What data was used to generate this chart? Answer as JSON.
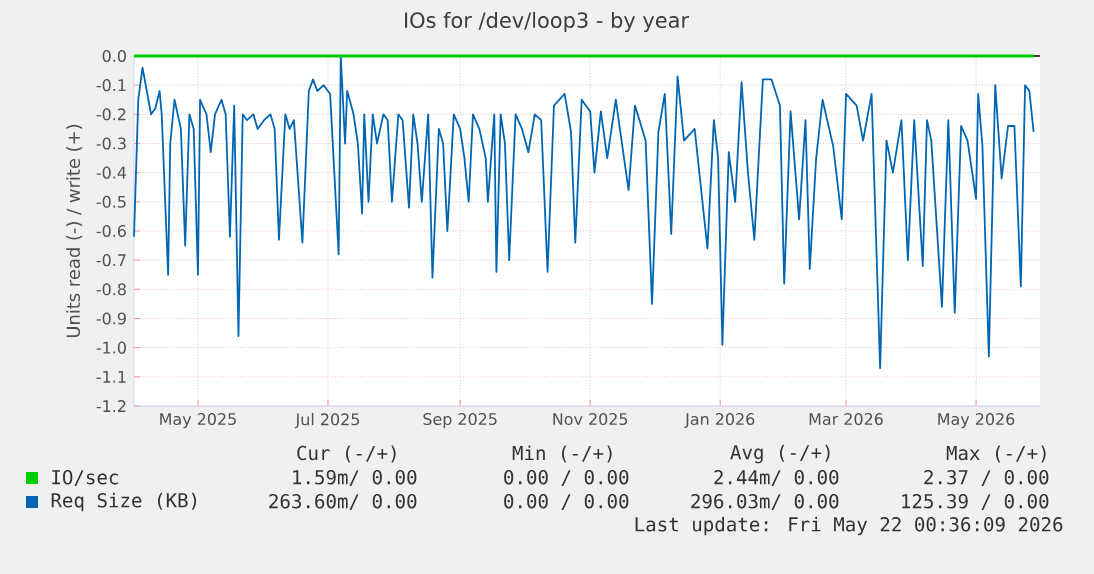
{
  "chart_data": {
    "type": "line",
    "title": "IOs for /dev/loop3 - by year",
    "ylabel": "Units read (-) / write (+)",
    "xlim": [
      "2025-04-01",
      "2026-05-31"
    ],
    "ylim": [
      -1.2,
      0.0
    ],
    "xticks": [
      {
        "value": "2025-05-01",
        "label": "May 2025"
      },
      {
        "value": "2025-07-01",
        "label": "Jul 2025"
      },
      {
        "value": "2025-09-01",
        "label": "Sep 2025"
      },
      {
        "value": "2025-11-01",
        "label": "Nov 2025"
      },
      {
        "value": "2026-01-01",
        "label": "Jan 2026"
      },
      {
        "value": "2026-03-01",
        "label": "Mar 2026"
      },
      {
        "value": "2026-05-01",
        "label": "May 2026"
      }
    ],
    "yticks": [
      {
        "value": 0.0,
        "label": "0.0"
      },
      {
        "value": -0.1,
        "label": "-0.1"
      },
      {
        "value": -0.2,
        "label": "-0.2"
      },
      {
        "value": -0.3,
        "label": "-0.3"
      },
      {
        "value": -0.4,
        "label": "-0.4"
      },
      {
        "value": -0.5,
        "label": "-0.5"
      },
      {
        "value": -0.6,
        "label": "-0.6"
      },
      {
        "value": -0.7,
        "label": "-0.7"
      },
      {
        "value": -0.8,
        "label": "-0.8"
      },
      {
        "value": -0.9,
        "label": "-0.9"
      },
      {
        "value": -1.0,
        "label": "-1.0"
      },
      {
        "value": -1.1,
        "label": "-1.1"
      },
      {
        "value": -1.2,
        "label": "-1.2"
      }
    ],
    "grid": true,
    "legend": "bottom left",
    "marker": "none",
    "ref_lines": [
      {
        "axis": "y",
        "value": 0,
        "color": "#000000"
      }
    ],
    "series": [
      {
        "name": "IO/sec",
        "color": "#00cc00",
        "x": [
          "2025-04-01",
          "2026-05-28"
        ],
        "values": [
          0,
          0
        ]
      },
      {
        "name": "Req Size (KB)",
        "color": "#0066b3",
        "x": [
          "2025-04-01",
          "2025-04-03",
          "2025-04-05",
          "2025-04-07",
          "2025-04-09",
          "2025-04-11",
          "2025-04-13",
          "2025-04-14",
          "2025-04-17",
          "2025-04-18",
          "2025-04-20",
          "2025-04-23",
          "2025-04-25",
          "2025-04-27",
          "2025-04-29",
          "2025-05-01",
          "2025-05-02",
          "2025-05-05",
          "2025-05-07",
          "2025-05-09",
          "2025-05-12",
          "2025-05-14",
          "2025-05-16",
          "2025-05-18",
          "2025-05-20",
          "2025-05-22",
          "2025-05-24",
          "2025-05-27",
          "2025-05-29",
          "2025-06-01",
          "2025-06-04",
          "2025-06-06",
          "2025-06-08",
          "2025-06-11",
          "2025-06-13",
          "2025-06-15",
          "2025-06-19",
          "2025-06-22",
          "2025-06-24",
          "2025-06-26",
          "2025-06-29",
          "2025-07-02",
          "2025-07-06",
          "2025-07-07",
          "2025-07-09",
          "2025-07-10",
          "2025-07-13",
          "2025-07-15",
          "2025-07-17",
          "2025-07-18",
          "2025-07-20",
          "2025-07-22",
          "2025-07-24",
          "2025-07-27",
          "2025-07-29",
          "2025-07-31",
          "2025-08-03",
          "2025-08-05",
          "2025-08-08",
          "2025-08-10",
          "2025-08-12",
          "2025-08-14",
          "2025-08-17",
          "2025-08-19",
          "2025-08-22",
          "2025-08-24",
          "2025-08-26",
          "2025-08-29",
          "2025-09-01",
          "2025-09-03",
          "2025-09-05",
          "2025-09-07",
          "2025-09-10",
          "2025-09-13",
          "2025-09-14",
          "2025-09-17",
          "2025-09-18",
          "2025-09-20",
          "2025-09-22",
          "2025-09-24",
          "2025-09-27",
          "2025-09-30",
          "2025-10-03",
          "2025-10-06",
          "2025-10-09",
          "2025-10-12",
          "2025-10-15",
          "2025-10-20",
          "2025-10-23",
          "2025-10-25",
          "2025-10-28",
          "2025-11-01",
          "2025-11-03",
          "2025-11-06",
          "2025-11-09",
          "2025-11-13",
          "2025-11-19",
          "2025-11-22",
          "2025-11-27",
          "2025-11-30",
          "2025-12-03",
          "2025-12-06",
          "2025-12-09",
          "2025-12-12",
          "2025-12-15",
          "2025-12-20",
          "2025-12-26",
          "2025-12-29",
          "2025-12-31",
          "2026-01-02",
          "2026-01-05",
          "2026-01-08",
          "2026-01-11",
          "2026-01-14",
          "2026-01-17",
          "2026-01-21",
          "2026-01-25",
          "2026-01-29",
          "2026-01-31",
          "2026-02-03",
          "2026-02-07",
          "2026-02-10",
          "2026-02-12",
          "2026-02-15",
          "2026-02-18",
          "2026-02-23",
          "2026-02-27",
          "2026-03-01",
          "2026-03-06",
          "2026-03-09",
          "2026-03-13",
          "2026-03-17",
          "2026-03-20",
          "2026-03-23",
          "2026-03-27",
          "2026-03-30",
          "2026-04-02",
          "2026-04-06",
          "2026-04-08",
          "2026-04-10",
          "2026-04-15",
          "2026-04-18",
          "2026-04-21",
          "2026-04-24",
          "2026-04-27",
          "2026-05-01",
          "2026-05-02",
          "2026-05-04",
          "2026-05-07",
          "2026-05-10",
          "2026-05-13",
          "2026-05-16",
          "2026-05-19",
          "2026-05-22",
          "2026-05-24",
          "2026-05-26",
          "2026-05-28"
        ],
        "values": [
          -0.62,
          -0.15,
          -0.04,
          -0.12,
          -0.2,
          -0.18,
          -0.12,
          -0.2,
          -0.75,
          -0.3,
          -0.15,
          -0.25,
          -0.65,
          -0.2,
          -0.25,
          -0.75,
          -0.15,
          -0.2,
          -0.33,
          -0.2,
          -0.15,
          -0.2,
          -0.62,
          -0.17,
          -0.96,
          -0.2,
          -0.22,
          -0.2,
          -0.25,
          -0.22,
          -0.2,
          -0.25,
          -0.63,
          -0.2,
          -0.25,
          -0.22,
          -0.64,
          -0.12,
          -0.08,
          -0.12,
          -0.1,
          -0.13,
          -0.68,
          0.0,
          -0.3,
          -0.12,
          -0.2,
          -0.3,
          -0.54,
          -0.2,
          -0.5,
          -0.2,
          -0.3,
          -0.2,
          -0.22,
          -0.5,
          -0.2,
          -0.22,
          -0.52,
          -0.2,
          -0.3,
          -0.5,
          -0.2,
          -0.76,
          -0.25,
          -0.3,
          -0.6,
          -0.2,
          -0.25,
          -0.35,
          -0.5,
          -0.2,
          -0.25,
          -0.35,
          -0.5,
          -0.2,
          -0.74,
          -0.2,
          -0.3,
          -0.7,
          -0.2,
          -0.25,
          -0.33,
          -0.2,
          -0.22,
          -0.74,
          -0.17,
          -0.13,
          -0.26,
          -0.64,
          -0.15,
          -0.19,
          -0.4,
          -0.19,
          -0.35,
          -0.15,
          -0.46,
          -0.17,
          -0.29,
          -0.85,
          -0.26,
          -0.13,
          -0.61,
          -0.07,
          -0.29,
          -0.25,
          -0.66,
          -0.22,
          -0.35,
          -0.99,
          -0.33,
          -0.5,
          -0.09,
          -0.4,
          -0.63,
          -0.08,
          -0.08,
          -0.17,
          -0.78,
          -0.19,
          -0.56,
          -0.22,
          -0.73,
          -0.35,
          -0.15,
          -0.31,
          -0.56,
          -0.13,
          -0.17,
          -0.29,
          -0.13,
          -1.07,
          -0.29,
          -0.4,
          -0.22,
          -0.7,
          -0.22,
          -0.72,
          -0.22,
          -0.29,
          -0.86,
          -0.22,
          -0.88,
          -0.24,
          -0.29,
          -0.49,
          -0.13,
          -0.31,
          -1.03,
          -0.1,
          -0.42,
          -0.24,
          -0.24,
          -0.79,
          -0.1,
          -0.12,
          -0.26
        ]
      }
    ],
    "annotations": [
      "Cur (-/+)",
      "Min (-/+)",
      "Avg (-/+)",
      "Max (-/+)",
      "1.59m/  0.00",
      "0.00 /  0.00",
      "2.44m/  0.00",
      "2.37 /  0.00",
      "263.60m/  0.00",
      "0.00 /  0.00",
      "296.03m/  0.00",
      "125.39 /  0.00",
      "Last update: Fri May 22 00:36:09 2026"
    ]
  }
}
